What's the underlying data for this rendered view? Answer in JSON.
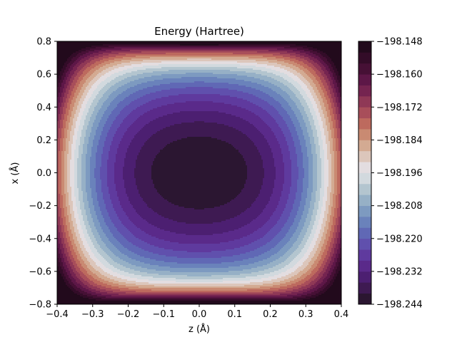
{
  "chart_data": {
    "type": "heatmap",
    "subtype": "filled-contour",
    "title": "Energy (Hartree)",
    "xlabel": "z (Å)",
    "ylabel": "x (Å)",
    "xlim": [
      -0.4,
      0.4
    ],
    "ylim": [
      -0.8,
      0.8
    ],
    "x_ticks": [
      -0.4,
      -0.3,
      -0.2,
      -0.1,
      0.0,
      0.1,
      0.2,
      0.3,
      0.4
    ],
    "x_tick_labels": [
      "−0.4",
      "−0.3",
      "−0.2",
      "−0.1",
      "0.0",
      "0.1",
      "0.2",
      "0.3",
      "0.4"
    ],
    "y_ticks": [
      -0.8,
      -0.6,
      -0.4,
      -0.2,
      0.0,
      0.2,
      0.4,
      0.6,
      0.8
    ],
    "y_tick_labels": [
      "−0.8",
      "−0.6",
      "−0.4",
      "−0.2",
      "0.0",
      "0.2",
      "0.4",
      "0.6",
      "0.8"
    ],
    "colormap": "twilight_shifted",
    "min_value": -198.244,
    "max_value": -198.148,
    "minimum_location": {
      "z": 0.0,
      "x": 0.0
    },
    "maximum_locations": [
      "z = ±0.4 (left/right edges)",
      "x = ±0.8, z = 0 (top/bottom centre)"
    ],
    "level_step": 0.004,
    "grid": false,
    "colorbar": {
      "position": "right",
      "levels": [
        -198.244,
        -198.24,
        -198.236,
        -198.232,
        -198.228,
        -198.224,
        -198.22,
        -198.216,
        -198.212,
        -198.208,
        -198.204,
        -198.2,
        -198.196,
        -198.192,
        -198.188,
        -198.184,
        -198.18,
        -198.176,
        -198.172,
        -198.168,
        -198.164,
        -198.16,
        -198.156,
        -198.152,
        -198.148
      ],
      "band_colors": [
        "#2b1631",
        "#3e1a52",
        "#4c1f71",
        "#5a2a8a",
        "#5f3a9e",
        "#6050ad",
        "#6068b5",
        "#6a82bb",
        "#7d9ac0",
        "#96b0c6",
        "#b3c5cf",
        "#d2d9de",
        "#e3dde0",
        "#dcc6bb",
        "#d3aa92",
        "#c98a72",
        "#bd6a5e",
        "#a84e5a",
        "#8f3856",
        "#752450",
        "#5d1747",
        "#461035",
        "#330c28",
        "#220a1c"
      ],
      "tick_values": [
        -198.244,
        -198.232,
        -198.22,
        -198.208,
        -198.196,
        -198.184,
        -198.172,
        -198.16,
        -198.148
      ],
      "tick_labels": [
        "−198.244",
        "−198.232",
        "−198.220",
        "−198.208",
        "−198.196",
        "−198.184",
        "−198.172",
        "−198.160",
        "−198.148"
      ]
    }
  }
}
